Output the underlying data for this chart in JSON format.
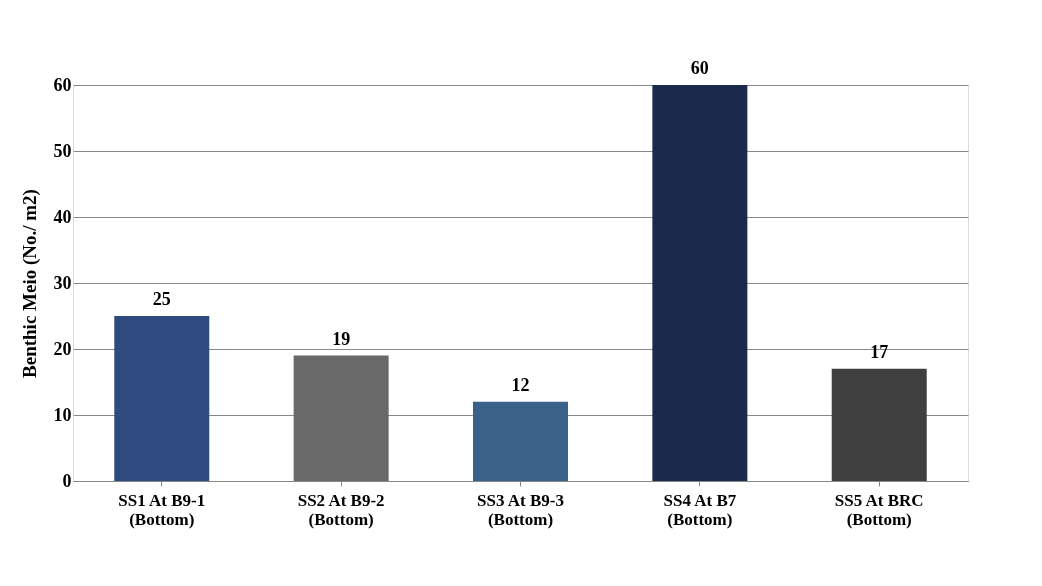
{
  "chart_data": {
    "type": "bar",
    "ylabel": "Benthic Meio (No./ m2)",
    "categories": [
      "SS1 At B9-1\n(Bottom)",
      "SS2 At B9-2\n(Bottom)",
      "SS3 At B9-3\n(Bottom)",
      "SS4 At B7\n(Bottom)",
      "SS5 At BRC\n(Bottom)"
    ],
    "values": [
      25,
      19,
      12,
      60,
      17
    ],
    "colors": [
      "#2e4a7e",
      "#696969",
      "#3a6289",
      "#1b2a4a",
      "#3f3f3f"
    ],
    "ylim": [
      0,
      60
    ],
    "yticks": [
      0,
      10,
      20,
      30,
      40,
      50,
      60
    ],
    "grid": "y",
    "data_labels": true
  }
}
